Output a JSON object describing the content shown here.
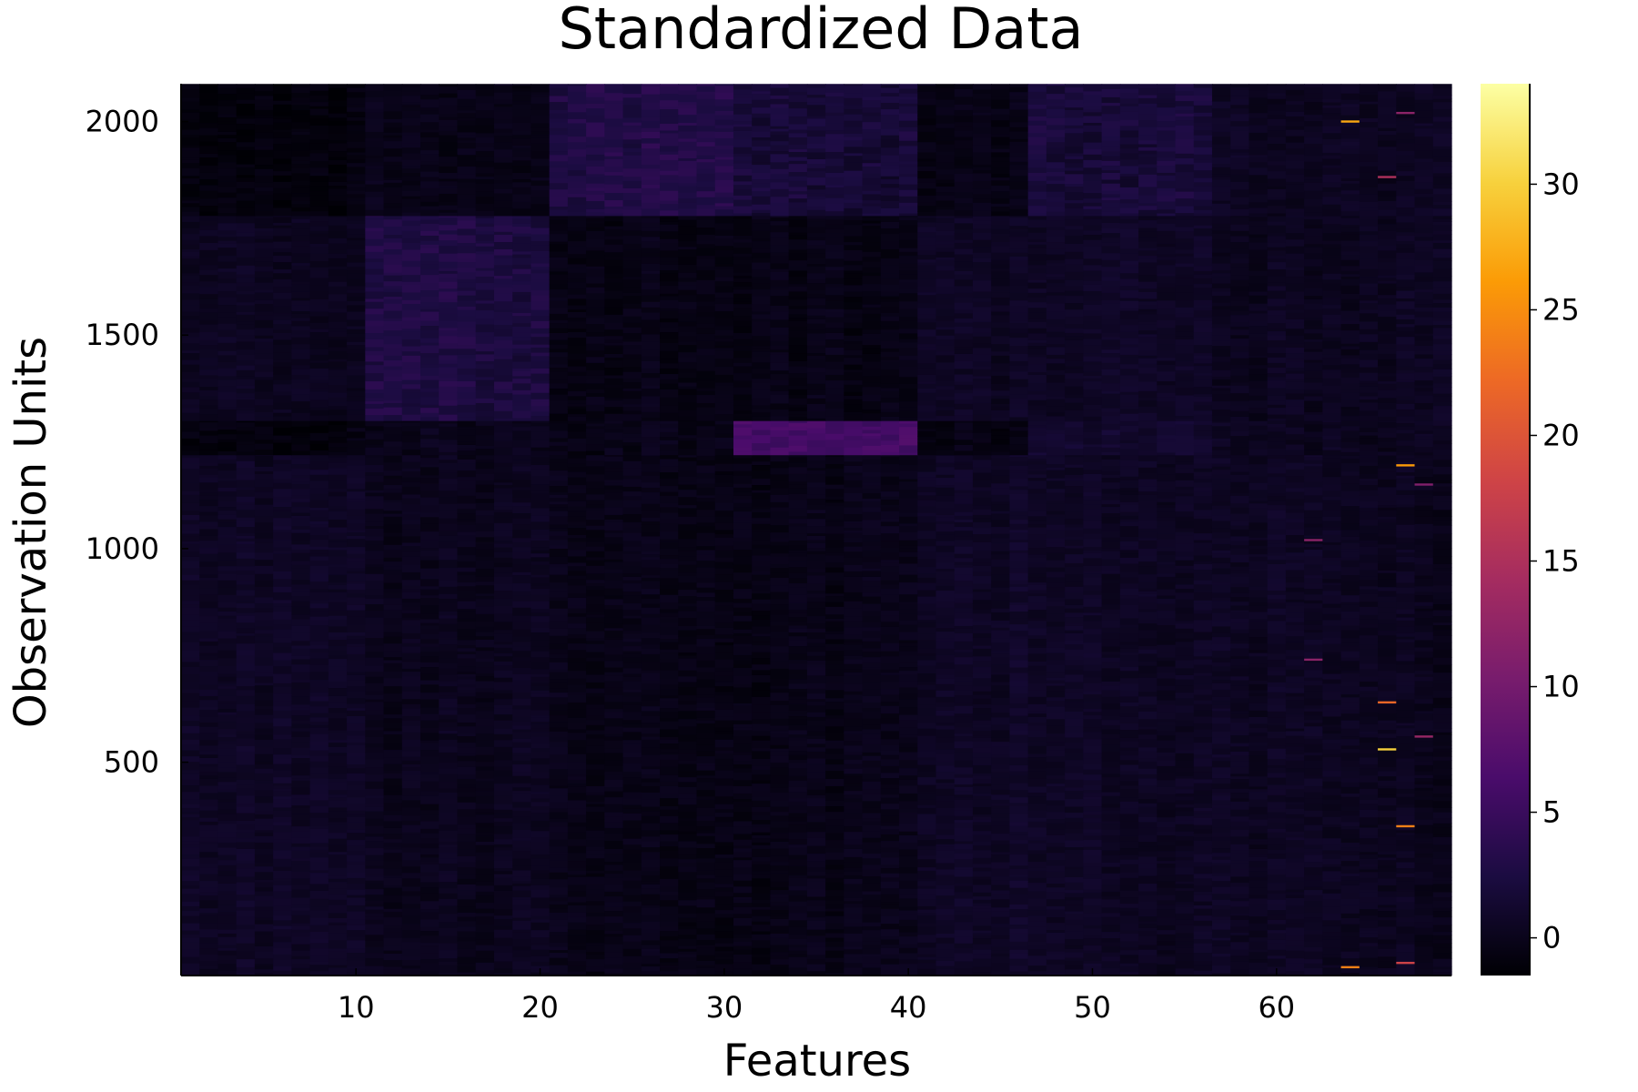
{
  "chart_data": {
    "type": "heatmap",
    "title": "Standardized Data",
    "xlabel": "Features",
    "ylabel": "Observation Units",
    "xlim": [
      0.5,
      69.5
    ],
    "ylim": [
      0.5,
      2088.5
    ],
    "x_ticks": [
      10,
      20,
      30,
      40,
      50,
      60
    ],
    "y_ticks": [
      500,
      1000,
      1500,
      2000
    ],
    "colorbar": {
      "colormap": "inferno",
      "range": [
        -1.5,
        34
      ],
      "ticks": [
        0,
        5,
        10,
        15,
        20,
        25,
        30
      ]
    },
    "colormap_stops": [
      "#000004",
      "#1b0c41",
      "#4a0c6b",
      "#781c6d",
      "#a52c60",
      "#cf4446",
      "#ed6925",
      "#fb9b06",
      "#f7d13d",
      "#fcffa4"
    ],
    "grid": false,
    "n_features": 69,
    "n_observations": 2088,
    "observation_groups": [
      {
        "rows": [
          1,
          1220
        ],
        "feature_levels": {
          "1-10": 0.6,
          "11-20": 0.05,
          "21-40": -0.3,
          "41-46": 0.7,
          "47-56": 0.5,
          "57-63": 0.4,
          "64-69": 0.1
        }
      },
      {
        "rows": [
          1220,
          1300
        ],
        "feature_levels": {
          "1-10": -0.8,
          "11-20": 0.0,
          "21-30": -0.3,
          "31-40": 6.0,
          "41-46": -0.6,
          "47-56": 1.2,
          "57-69": 0.2
        }
      },
      {
        "rows": [
          1300,
          1780
        ],
        "feature_levels": {
          "1-10": 0.3,
          "11-20": 2.5,
          "21-40": -0.4,
          "41-46": 0.4,
          "47-56": 0.6,
          "57-69": 0.3
        }
      },
      {
        "rows": [
          1780,
          2088
        ],
        "feature_levels": {
          "1-10": -1.0,
          "11-20": -0.3,
          "21-30": 3.0,
          "31-40": 1.8,
          "41-46": -0.4,
          "47-56": 2.0,
          "57-69": 0.3
        }
      }
    ],
    "outliers": [
      {
        "feature": 64,
        "row": 2000,
        "value": 27
      },
      {
        "feature": 64,
        "row": 20,
        "value": 24
      },
      {
        "feature": 66,
        "row": 1870,
        "value": 15
      },
      {
        "feature": 66,
        "row": 640,
        "value": 22
      },
      {
        "feature": 66,
        "row": 530,
        "value": 30
      },
      {
        "feature": 67,
        "row": 1195,
        "value": 26
      },
      {
        "feature": 67,
        "row": 350,
        "value": 24
      },
      {
        "feature": 67,
        "row": 30,
        "value": 18
      },
      {
        "feature": 67,
        "row": 2020,
        "value": 12
      },
      {
        "feature": 68,
        "row": 560,
        "value": 13
      },
      {
        "feature": 68,
        "row": 1150,
        "value": 11
      },
      {
        "feature": 62,
        "row": 740,
        "value": 12
      },
      {
        "feature": 62,
        "row": 1020,
        "value": 12
      }
    ]
  }
}
